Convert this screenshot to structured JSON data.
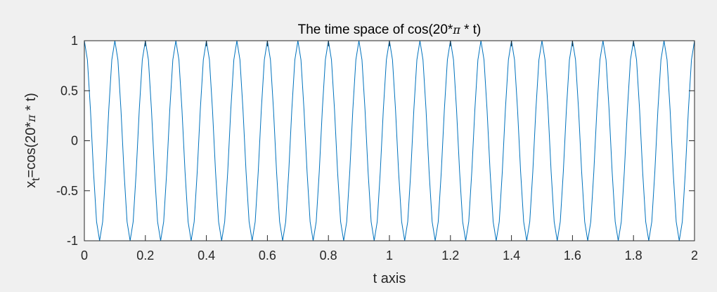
{
  "colors": {
    "figure_background": "#f0f0f0",
    "axes_background": "#ffffff",
    "axis_color": "#262626",
    "series_color": "#0072bd"
  },
  "chart_data": {
    "type": "line",
    "title": "The time space of cos(20*π * t)",
    "title_parts": {
      "before": "The time space of cos(20*",
      "symbol": "π",
      "after": " * t)"
    },
    "xlabel": "t axis",
    "ylabel_parts": {
      "base": "x",
      "subscript": "t",
      "before": "=cos(20*",
      "symbol": "π",
      "after": " * t)"
    },
    "xlim": [
      0,
      2
    ],
    "ylim": [
      -1,
      1
    ],
    "xticks": [
      "0",
      "0.2",
      "0.4",
      "0.6",
      "0.8",
      "1",
      "1.2",
      "1.4",
      "1.6",
      "1.8",
      "2"
    ],
    "yticks": [
      "1",
      "0.5",
      "0",
      "-0.5",
      "-1"
    ],
    "grid": false,
    "legend": "none",
    "series": [
      {
        "function": "cos(20*pi*t)",
        "t_start": 0,
        "t_end": 2,
        "t_step": 0.01
      }
    ]
  }
}
